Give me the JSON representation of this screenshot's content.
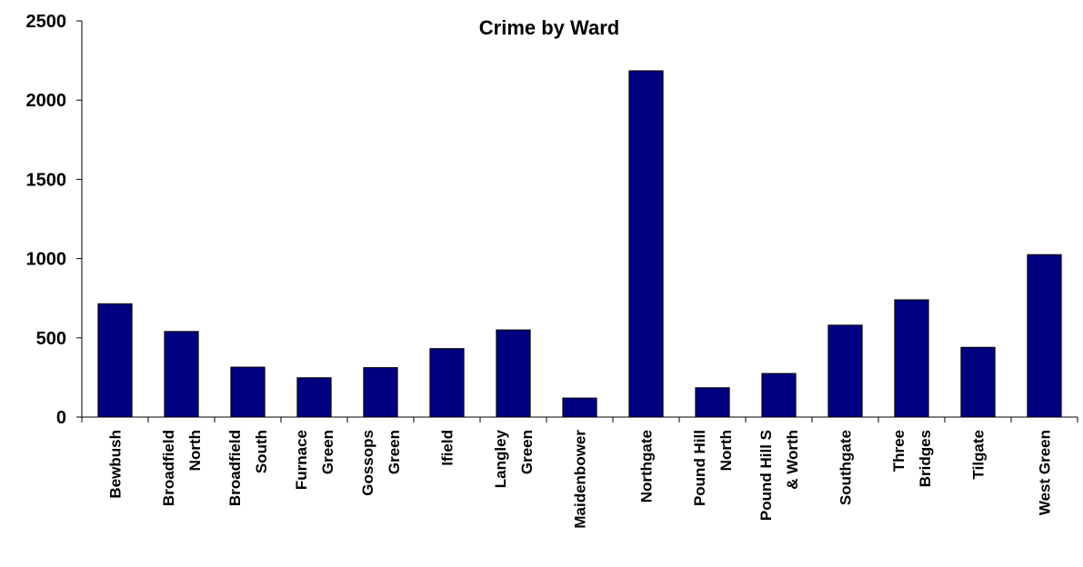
{
  "chart_data": {
    "type": "bar",
    "title": "Crime by Ward",
    "xlabel": "",
    "ylabel": "",
    "ylim": [
      0,
      2500
    ],
    "yticks": [
      0,
      500,
      1000,
      1500,
      2000,
      2500
    ],
    "grid": false,
    "legend": "none",
    "bar_color": "#000080",
    "categories": [
      [
        "Bewbush"
      ],
      [
        "Broadfield",
        "North"
      ],
      [
        "Broadfield",
        "South"
      ],
      [
        "Furnace",
        "Green"
      ],
      [
        "Gossops",
        "Green"
      ],
      [
        "Ifield"
      ],
      [
        "Langley",
        "Green"
      ],
      [
        "Maidenbower"
      ],
      [
        "Northgate"
      ],
      [
        "Pound Hill",
        "North"
      ],
      [
        "Pound Hill S",
        "& Worth"
      ],
      [
        "Southgate"
      ],
      [
        "Three",
        "Bridges"
      ],
      [
        "Tilgate"
      ],
      [
        "West Green"
      ]
    ],
    "values": [
      715,
      540,
      315,
      248,
      312,
      432,
      550,
      120,
      2185,
      185,
      275,
      580,
      740,
      440,
      1025
    ]
  }
}
